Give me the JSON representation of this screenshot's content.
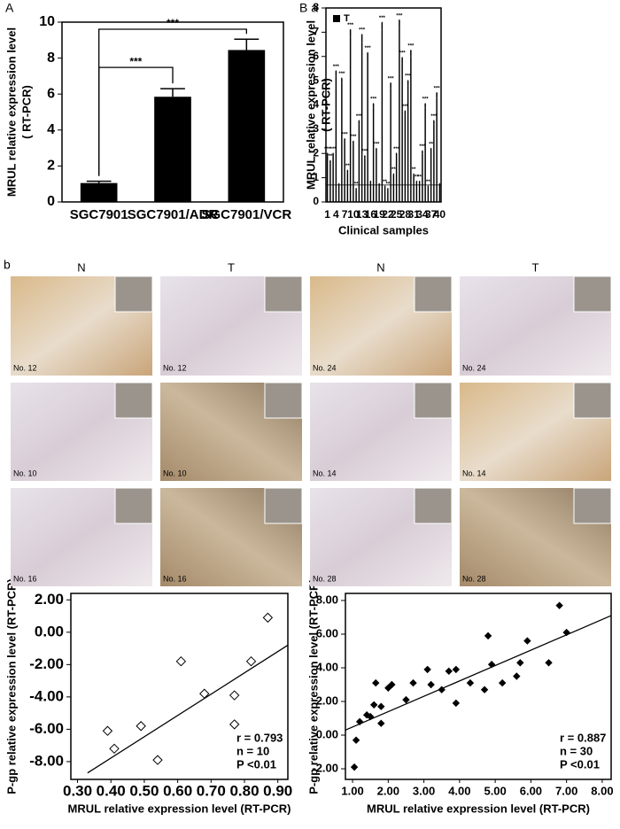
{
  "panel_labels": [
    "A",
    "B a",
    "b"
  ],
  "chart_data": [
    {
      "type": "bar",
      "ylabel": [
        "MRUL relative expression level",
        "( RT-PCR)"
      ],
      "categories": [
        "SGC7901",
        "SGC7901/ADR",
        "SGC7901/VCR"
      ],
      "values": [
        1.05,
        5.85,
        8.45
      ],
      "errors": [
        0.1,
        0.45,
        0.6
      ],
      "color": "#000000",
      "annotations": [
        "***",
        "***"
      ],
      "ylim": [
        0,
        10
      ],
      "yticks": [
        0,
        2,
        4,
        6,
        8,
        10
      ]
    },
    {
      "type": "bar",
      "ylabel": [
        "MRUL relative expression level",
        "( RT-PCR)"
      ],
      "xlabel": "Clinical samples",
      "categories": [
        "1",
        null,
        null,
        "4",
        null,
        null,
        "7",
        null,
        null,
        "10",
        null,
        null,
        "13",
        null,
        null,
        "16",
        null,
        null,
        "19",
        null,
        null,
        "22",
        null,
        null,
        "25",
        null,
        null,
        "28",
        null,
        null,
        "31",
        null,
        null,
        "34",
        null,
        null,
        "37",
        null,
        null,
        "40"
      ],
      "series": [
        {
          "name": "T",
          "color": "#000000",
          "values": [
            1.9,
            1.6,
            1.9,
            5.2,
            0.7,
            4.9,
            2.5,
            1.2,
            6.8,
            2.4,
            0.5,
            3.2,
            6.6,
            1.8,
            5.9,
            0.8,
            3.9,
            2.1,
            0.7,
            7.1,
            0.6,
            0.5,
            4.7,
            1.1,
            1.9,
            7.2,
            5.7,
            3.6,
            4.8,
            6.0,
            1.1,
            0.8,
            0.8,
            2.0,
            3.9,
            0.6,
            2.1,
            3.2,
            4.3,
            0.7
          ],
          "errors": [
            0.1,
            0.1,
            0.1,
            0.2,
            0.05,
            0.2,
            0.1,
            0.1,
            0.3,
            0.1,
            0.05,
            0.15,
            0.3,
            0.1,
            0.25,
            0.05,
            0.15,
            0.1,
            0.05,
            0.3,
            0.05,
            0.05,
            0.2,
            0.05,
            0.1,
            0.3,
            0.25,
            0.15,
            0.2,
            0.25,
            0.05,
            0.05,
            0.05,
            0.1,
            0.15,
            0.05,
            0.1,
            0.15,
            0.2,
            0.05
          ],
          "labels": [
            "***",
            "**",
            "***",
            "***",
            null,
            "***",
            "***",
            "**",
            "***",
            "***",
            "**",
            "***",
            "***",
            "***",
            "***",
            null,
            "***",
            "***",
            null,
            "***",
            "**",
            "**",
            "***",
            "**",
            "***",
            "***",
            "***",
            "***",
            "***",
            "***",
            "**",
            "**",
            "**",
            "***",
            "***",
            "**",
            "**",
            "***",
            "***",
            null
          ]
        }
      ],
      "reference_line": 0.7,
      "legend": "top-left",
      "ylim": [
        0,
        8
      ],
      "yticks": [
        0,
        1,
        2,
        3,
        4,
        5,
        6,
        7,
        8
      ]
    },
    {
      "type": "scatter",
      "ylabel": "P-gp relative expression level (RT-PCR)",
      "xlabel": "MRUL relative expression level (RT-PCR)",
      "x": [
        0.39,
        0.41,
        0.49,
        0.54,
        0.61,
        0.68,
        0.77,
        0.77,
        0.82,
        0.87
      ],
      "y": [
        -6.1,
        -7.2,
        -5.8,
        -7.9,
        -1.8,
        -3.8,
        -3.9,
        -5.7,
        -1.8,
        0.9
      ],
      "marker": "open-diamond",
      "color": "#000000",
      "ytick_color": "#e0242b",
      "trendline": {
        "x": [
          0.33,
          0.93
        ],
        "y": [
          -8.7,
          -0.8
        ]
      },
      "stats": [
        "r = 0.793",
        "n = 10",
        "P <0.01"
      ],
      "xlim": [
        0.28,
        0.93
      ],
      "ylim": [
        -9.1,
        2.4
      ],
      "xticks": [
        {
          "value": 0.3,
          "label": "0.30"
        },
        {
          "value": 0.4,
          "label": "0.40"
        },
        {
          "value": 0.5,
          "label": "0.50"
        },
        {
          "value": 0.6,
          "label": "0.60"
        },
        {
          "value": 0.7,
          "label": "0.70"
        },
        {
          "value": 0.8,
          "label": "0.80"
        },
        {
          "value": 0.9,
          "label": "0.90"
        }
      ],
      "yticks": [
        {
          "value": 2,
          "label": "2.00"
        },
        {
          "value": 0,
          "label": "0.00"
        },
        {
          "value": -2,
          "label": "-2.00"
        },
        {
          "value": -4,
          "label": "-4.00"
        },
        {
          "value": -6,
          "label": "-6.00"
        },
        {
          "value": -8,
          "label": "-8.00"
        }
      ]
    },
    {
      "type": "scatter",
      "ylabel": "P-gp relative expression level (RT-PCR)",
      "xlabel": "MRUL relative expression level (RT-PCR)",
      "x": [
        1.05,
        1.1,
        1.2,
        1.4,
        1.5,
        1.6,
        1.65,
        1.8,
        1.8,
        2.0,
        2.1,
        2.5,
        2.7,
        3.1,
        3.2,
        3.5,
        3.7,
        3.9,
        3.9,
        4.3,
        4.7,
        4.8,
        4.9,
        5.2,
        5.6,
        5.7,
        5.9,
        6.5,
        6.8,
        7.0
      ],
      "y": [
        -1.9,
        -0.3,
        0.8,
        1.2,
        1.1,
        1.8,
        3.1,
        0.7,
        1.7,
        2.8,
        3.0,
        2.1,
        3.1,
        3.9,
        3.0,
        2.7,
        3.8,
        3.9,
        1.9,
        3.1,
        2.7,
        5.9,
        4.2,
        3.1,
        3.5,
        4.3,
        5.6,
        4.3,
        7.7,
        6.1
      ],
      "marker": "diamond",
      "color": "#000000",
      "ytick_color": "#000000",
      "trendline": {
        "x": [
          0.8,
          8.25
        ],
        "y": [
          0.3,
          7.1
        ]
      },
      "stats": [
        "r = 0.887",
        "n = 30",
        "P <0.01"
      ],
      "xlim": [
        0.8,
        8.25
      ],
      "ylim": [
        -2.63,
        8.42
      ],
      "xticks": [
        {
          "value": 1,
          "label": "1.00"
        },
        {
          "value": 2,
          "label": "2.00"
        },
        {
          "value": 3,
          "label": "3.00"
        },
        {
          "value": 4,
          "label": "4.00"
        },
        {
          "value": 5,
          "label": "5.00"
        },
        {
          "value": 6,
          "label": "6.00"
        },
        {
          "value": 7,
          "label": "7.00"
        },
        {
          "value": 8,
          "label": "8.00"
        }
      ],
      "yticks": [
        {
          "value": 8,
          "label": "8.00"
        },
        {
          "value": 6,
          "label": "6.00"
        },
        {
          "value": 4,
          "label": "4.00"
        },
        {
          "value": 2,
          "label": "2.00"
        },
        {
          "value": 0,
          "label": "0.00"
        },
        {
          "value": -2,
          "label": "-2.00"
        }
      ]
    }
  ],
  "histology": {
    "columns": [
      "N",
      "T",
      "N",
      "T"
    ],
    "samples": [
      [
        "No. 12",
        "No. 12",
        "No. 24",
        "No. 24"
      ],
      [
        "No. 10",
        "No. 10",
        "No. 14",
        "No. 14"
      ],
      [
        "No. 16",
        "No. 16",
        "No. 28",
        "No. 28"
      ]
    ]
  }
}
